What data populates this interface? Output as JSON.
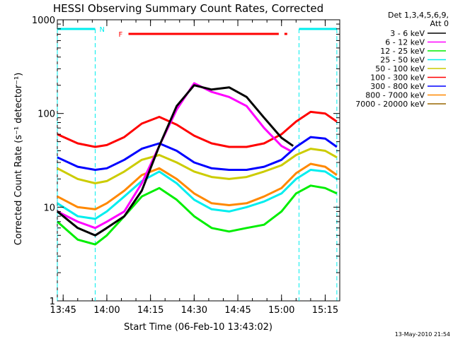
{
  "chart_data": {
    "type": "line",
    "title": "HESSI Observing Summary Count Rates, Corrected",
    "xlabel": "Start Time (06-Feb-10 13:43:02)",
    "ylabel": "Corrected Count Rate (s⁻¹ detector⁻¹)",
    "x_scale": "time",
    "x_range": [
      "13:43",
      "15:20"
    ],
    "y_scale": "log",
    "ylim": [
      1,
      1000
    ],
    "x_ticks": [
      "13:45",
      "14:00",
      "14:15",
      "14:30",
      "14:45",
      "15:00",
      "15:15"
    ],
    "y_ticks": [
      "1",
      "10",
      "100",
      "1000"
    ],
    "legend_header": [
      "Det 1,3,4,5,6,9,",
      "Att 0"
    ],
    "legend_position": "right",
    "series": [
      {
        "name": "3 - 6 keV",
        "color": "#000000",
        "x": [
          "13:43",
          "13:50",
          "13:56",
          "14:00",
          "14:06",
          "14:12",
          "14:18",
          "14:24",
          "14:30",
          "14:36",
          "14:42",
          "14:48",
          "14:54",
          "15:00",
          "15:04"
        ],
        "y": [
          9,
          6,
          5,
          6,
          8,
          15,
          45,
          120,
          200,
          180,
          190,
          150,
          90,
          55,
          45
        ]
      },
      {
        "name": "6 - 12 keV",
        "color": "#ff00ff",
        "x": [
          "13:43",
          "13:50",
          "13:56",
          "14:00",
          "14:06",
          "14:12",
          "14:18",
          "14:24",
          "14:30",
          "14:36",
          "14:42",
          "14:48",
          "14:54",
          "15:00",
          "15:03"
        ],
        "y": [
          9,
          7,
          6,
          7,
          9,
          18,
          45,
          110,
          210,
          170,
          150,
          120,
          70,
          45,
          40
        ]
      },
      {
        "name": "12 - 25 keV",
        "color": "#00ee00",
        "x": [
          "13:43",
          "13:50",
          "13:56",
          "14:00",
          "14:06",
          "14:12",
          "14:18",
          "14:24",
          "14:30",
          "14:36",
          "14:42",
          "14:48",
          "14:54",
          "15:00",
          "15:05",
          "15:10",
          "15:15",
          "15:19"
        ],
        "y": [
          7,
          4.5,
          4,
          5,
          8,
          13,
          16,
          12,
          8,
          6,
          5.5,
          6,
          6.5,
          9,
          14,
          17,
          16,
          14
        ]
      },
      {
        "name": "25 - 50 keV",
        "color": "#00eeee",
        "x": [
          "13:43",
          "13:50",
          "13:56",
          "14:00",
          "14:06",
          "14:12",
          "14:18",
          "14:24",
          "14:30",
          "14:36",
          "14:42",
          "14:48",
          "14:54",
          "15:00",
          "15:05",
          "15:10",
          "15:15",
          "15:19"
        ],
        "y": [
          11,
          8,
          7.5,
          9,
          13,
          19,
          24,
          18,
          12,
          9.5,
          9,
          10,
          11.5,
          14,
          20,
          25,
          24,
          20
        ]
      },
      {
        "name": "50 - 100 keV",
        "color": "#cccc00",
        "x": [
          "13:43",
          "13:50",
          "13:56",
          "14:00",
          "14:06",
          "14:12",
          "14:18",
          "14:24",
          "14:30",
          "14:36",
          "14:42",
          "14:48",
          "14:54",
          "15:00",
          "15:05",
          "15:10",
          "15:15",
          "15:19"
        ],
        "y": [
          26,
          20,
          18,
          19,
          24,
          32,
          36,
          30,
          24,
          21,
          20,
          21,
          24,
          28,
          36,
          42,
          40,
          34
        ]
      },
      {
        "name": "100 - 300 keV",
        "color": "#ff0000",
        "x": [
          "13:43",
          "13:50",
          "13:56",
          "14:00",
          "14:06",
          "14:12",
          "14:18",
          "14:24",
          "14:30",
          "14:36",
          "14:42",
          "14:48",
          "14:54",
          "15:00",
          "15:05",
          "15:10",
          "15:15",
          "15:19"
        ],
        "y": [
          60,
          48,
          44,
          46,
          56,
          78,
          92,
          76,
          58,
          48,
          44,
          44,
          48,
          60,
          82,
          104,
          100,
          82
        ]
      },
      {
        "name": "300 - 800 keV",
        "color": "#0000ff",
        "x": [
          "13:43",
          "13:50",
          "13:56",
          "14:00",
          "14:06",
          "14:12",
          "14:18",
          "14:24",
          "14:30",
          "14:36",
          "14:42",
          "14:48",
          "14:54",
          "15:00",
          "15:05",
          "15:10",
          "15:15",
          "15:19"
        ],
        "y": [
          34,
          27,
          25,
          26,
          32,
          42,
          48,
          40,
          30,
          26,
          25,
          25,
          27,
          32,
          44,
          56,
          54,
          44
        ]
      },
      {
        "name": "800 - 7000 keV",
        "color": "#ff8800",
        "x": [
          "13:43",
          "13:50",
          "13:56",
          "14:00",
          "14:06",
          "14:12",
          "14:18",
          "14:24",
          "14:30",
          "14:36",
          "14:42",
          "14:48",
          "14:54",
          "15:00",
          "15:05",
          "15:10",
          "15:15",
          "15:19"
        ],
        "y": [
          13,
          10,
          9.5,
          11,
          15,
          22,
          26,
          20,
          14,
          11,
          10.5,
          11,
          13,
          16,
          23,
          29,
          27,
          22
        ]
      },
      {
        "name": "7000 - 20000 keV",
        "color": "#996600",
        "x": [],
        "y": []
      }
    ],
    "flags": {
      "saa_night_label": "N",
      "flare_label": "F",
      "night_intervals": [
        [
          "13:43",
          "13:56"
        ],
        [
          "15:06",
          "15:19"
        ]
      ],
      "flare_interval": [
        "14:05",
        "15:01"
      ]
    },
    "timestamp": "13-May-2010 21:54"
  }
}
